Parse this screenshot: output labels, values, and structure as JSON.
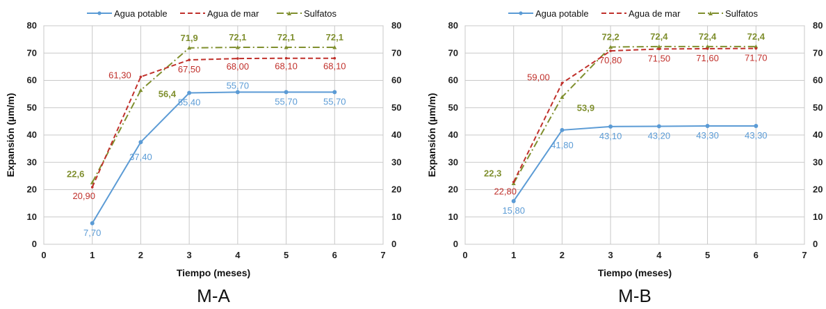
{
  "chart_data": [
    {
      "type": "line",
      "caption": "M-A",
      "xlabel": "Tiempo (meses)",
      "ylabel": "Expansión (µm/m)",
      "xlim": [
        0,
        7
      ],
      "ylim": [
        0,
        80
      ],
      "x_ticks": [
        "0",
        "1",
        "2",
        "3",
        "4",
        "5",
        "6",
        "7"
      ],
      "y_ticks": [
        "0",
        "10",
        "20",
        "30",
        "40",
        "50",
        "60",
        "70",
        "80"
      ],
      "grid": true,
      "legend_position": "top",
      "x": [
        1,
        2,
        3,
        4,
        5,
        6
      ],
      "series": [
        {
          "name": "Agua potable",
          "color": "#5b9bd5",
          "style": "solid-marker",
          "values": [
            7.7,
            37.4,
            55.4,
            55.7,
            55.7,
            55.7
          ],
          "labels": [
            "7,70",
            "37,40",
            "55,40",
            "55,70",
            "55,70",
            "55,70"
          ]
        },
        {
          "name": "Agua de mar",
          "color": "#c0302b",
          "style": "dashed",
          "values": [
            20.9,
            61.3,
            67.5,
            68.0,
            68.1,
            68.1
          ],
          "labels": [
            "20,90",
            "61,30",
            "67,50",
            "68,00",
            "68,10",
            "68,10"
          ]
        },
        {
          "name": "Sulfatos",
          "color": "#7f8f2e",
          "style": "dashdot",
          "values": [
            22.6,
            56.4,
            71.9,
            72.1,
            72.1,
            72.1
          ],
          "labels": [
            "22,6",
            "56,4",
            "71,9",
            "72,1",
            "72,1",
            "72,1"
          ]
        }
      ]
    },
    {
      "type": "line",
      "caption": "M-B",
      "xlabel": "Tiempo (meses)",
      "ylabel": "Expansión (µm/m)",
      "xlim": [
        0,
        7
      ],
      "ylim": [
        0,
        80
      ],
      "x_ticks": [
        "0",
        "1",
        "2",
        "3",
        "4",
        "5",
        "6",
        "7"
      ],
      "y_ticks": [
        "0",
        "10",
        "20",
        "30",
        "40",
        "50",
        "60",
        "70",
        "80"
      ],
      "grid": true,
      "legend_position": "top",
      "x": [
        1,
        2,
        3,
        4,
        5,
        6
      ],
      "series": [
        {
          "name": "Agua potable",
          "color": "#5b9bd5",
          "style": "solid-marker",
          "values": [
            15.8,
            41.8,
            43.1,
            43.2,
            43.3,
            43.3
          ],
          "labels": [
            "15,80",
            "41,80",
            "43,10",
            "43,20",
            "43,30",
            "43,30"
          ]
        },
        {
          "name": "Agua de mar",
          "color": "#c0302b",
          "style": "dashed",
          "values": [
            22.8,
            59.0,
            70.8,
            71.5,
            71.6,
            71.7
          ],
          "labels": [
            "22,80",
            "59,00",
            "70,80",
            "71,50",
            "71,60",
            "71,70"
          ]
        },
        {
          "name": "Sulfatos",
          "color": "#7f8f2e",
          "style": "dashdot",
          "values": [
            22.3,
            53.9,
            72.2,
            72.4,
            72.4,
            72.4
          ],
          "labels": [
            "22,3",
            "53,9",
            "72,2",
            "72,4",
            "72,4",
            "72,4"
          ]
        }
      ]
    }
  ]
}
